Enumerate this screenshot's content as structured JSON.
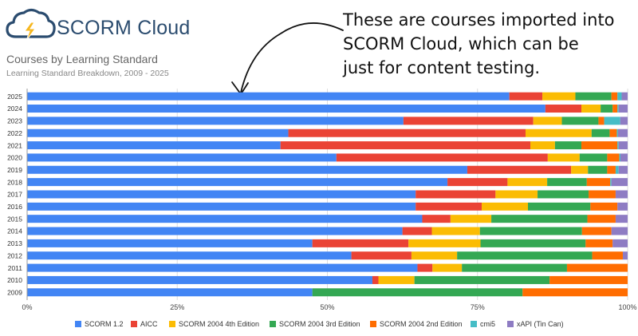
{
  "logo": {
    "text": "SCORM Cloud",
    "icon": "cloud-lightning-icon"
  },
  "header": {
    "title": "Courses by Learning Standard",
    "subtitle": "Learning Standard Breakdown, 2009 - 2025"
  },
  "callout": {
    "text": "These are courses imported into\nSCORM Cloud, which can be\njust for content testing."
  },
  "colors": {
    "scorm12": "#4285f4",
    "aicc": "#ea4335",
    "s2004_4": "#fbbc04",
    "s2004_3": "#34a853",
    "s2004_2": "#ff6d01",
    "cmi5": "#46bdc6",
    "xapi": "#8e7cc3"
  },
  "chart_data": {
    "type": "bar",
    "orientation": "horizontal",
    "stacked": "percent",
    "categories": [
      "2025",
      "2024",
      "2023",
      "2022",
      "2021",
      "2020",
      "2019",
      "2018",
      "2017",
      "2016",
      "2015",
      "2014",
      "2013",
      "2012",
      "2011",
      "2010",
      "2009"
    ],
    "xlim": [
      0,
      100
    ],
    "x_ticks": [
      "0%",
      "25%",
      "50%",
      "75%",
      "100%"
    ],
    "grid": true,
    "legend_position": "bottom",
    "series": [
      {
        "name": "SCORM 1.2",
        "color": "#4285f4",
        "values": [
          80.3,
          86.3,
          65.8,
          43.5,
          42.2,
          51.5,
          73.3,
          70.0,
          64.7,
          64.7,
          65.8,
          62.5,
          47.5,
          54.0,
          65.0,
          57.5,
          47.5
        ]
      },
      {
        "name": "AICC",
        "color": "#ea4335",
        "values": [
          5.5,
          6.0,
          22.7,
          39.5,
          41.6,
          35.2,
          17.3,
          10.0,
          13.3,
          11.0,
          4.7,
          4.9,
          16.0,
          10.0,
          2.5,
          1.0,
          0
        ]
      },
      {
        "name": "SCORM 2004 4th Edition",
        "color": "#fbbc04",
        "values": [
          5.5,
          3.2,
          5.0,
          11.0,
          4.1,
          5.3,
          2.8,
          6.6,
          7.0,
          7.7,
          6.8,
          8.0,
          12.0,
          7.6,
          4.9,
          6.0,
          0
        ]
      },
      {
        "name": "SCORM 2004 3rd Edition",
        "color": "#34a853",
        "values": [
          6.0,
          2.0,
          6.4,
          3.0,
          4.4,
          4.6,
          3.2,
          6.6,
          8.5,
          10.4,
          16.0,
          17.0,
          17.5,
          22.5,
          17.5,
          22.5,
          35.0
        ]
      },
      {
        "name": "SCORM 2004 2nd Edition",
        "color": "#ff6d01",
        "values": [
          1.0,
          0.8,
          1.0,
          1.2,
          6.0,
          2.0,
          1.4,
          3.9,
          4.5,
          4.5,
          4.7,
          4.9,
          4.5,
          5.1,
          10.1,
          13.0,
          17.5
        ]
      },
      {
        "name": "cmi5",
        "color": "#46bdc6",
        "values": [
          0.7,
          0.2,
          2.8,
          0.2,
          0.2,
          0.2,
          0.5,
          0.2,
          0,
          0,
          0,
          0,
          0,
          0,
          0,
          0,
          0
        ]
      },
      {
        "name": "xAPI (Tin Can)",
        "color": "#8e7cc3",
        "values": [
          1.0,
          1.5,
          1.3,
          1.6,
          1.5,
          1.2,
          1.5,
          2.7,
          2.0,
          1.7,
          2.0,
          2.7,
          2.5,
          0.8,
          0,
          0,
          0
        ]
      }
    ]
  }
}
